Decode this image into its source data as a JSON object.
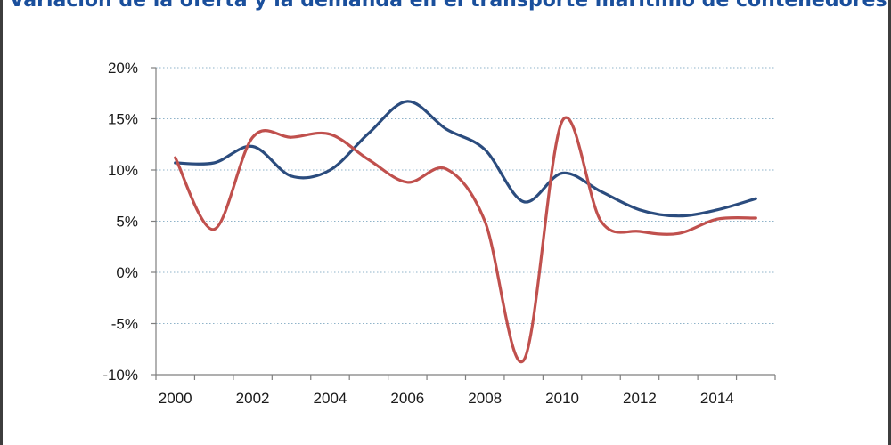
{
  "chart_data": {
    "type": "line",
    "title": "Variación de la oferta y la demanda en el transporte marítimo de contenedores",
    "xlabel": "",
    "ylabel": "",
    "x": [
      2000,
      2001,
      2002,
      2003,
      2004,
      2005,
      2006,
      2007,
      2008,
      2009,
      2010,
      2011,
      2012,
      2013,
      2014,
      2015
    ],
    "x_ticks": [
      "2000",
      "2002",
      "2004",
      "2006",
      "2008",
      "2010",
      "2012",
      "2014"
    ],
    "x_tick_values": [
      2000,
      2002,
      2004,
      2006,
      2008,
      2010,
      2012,
      2014
    ],
    "xlim": [
      2000,
      2016
    ],
    "ylim": [
      -10,
      20
    ],
    "y_ticks": [
      "20%",
      "15%",
      "10%",
      "5%",
      "0%",
      "-5%",
      "-10%"
    ],
    "y_tick_values": [
      20,
      15,
      10,
      5,
      0,
      -5,
      -10
    ],
    "grid": "horizontal-dotted",
    "series": [
      {
        "color": "#2b4c7e",
        "values": [
          10.7,
          10.7,
          12.3,
          9.4,
          10.0,
          13.6,
          16.7,
          14.0,
          12.0,
          6.9,
          9.7,
          7.9,
          6.1,
          5.5,
          6.1,
          7.2
        ]
      },
      {
        "color": "#c0504d",
        "values": [
          11.2,
          4.2,
          13.2,
          13.2,
          13.5,
          11.0,
          8.8,
          10.1,
          5.0,
          -8.6,
          14.8,
          5.0,
          4.0,
          3.8,
          5.2,
          5.3
        ]
      }
    ]
  }
}
